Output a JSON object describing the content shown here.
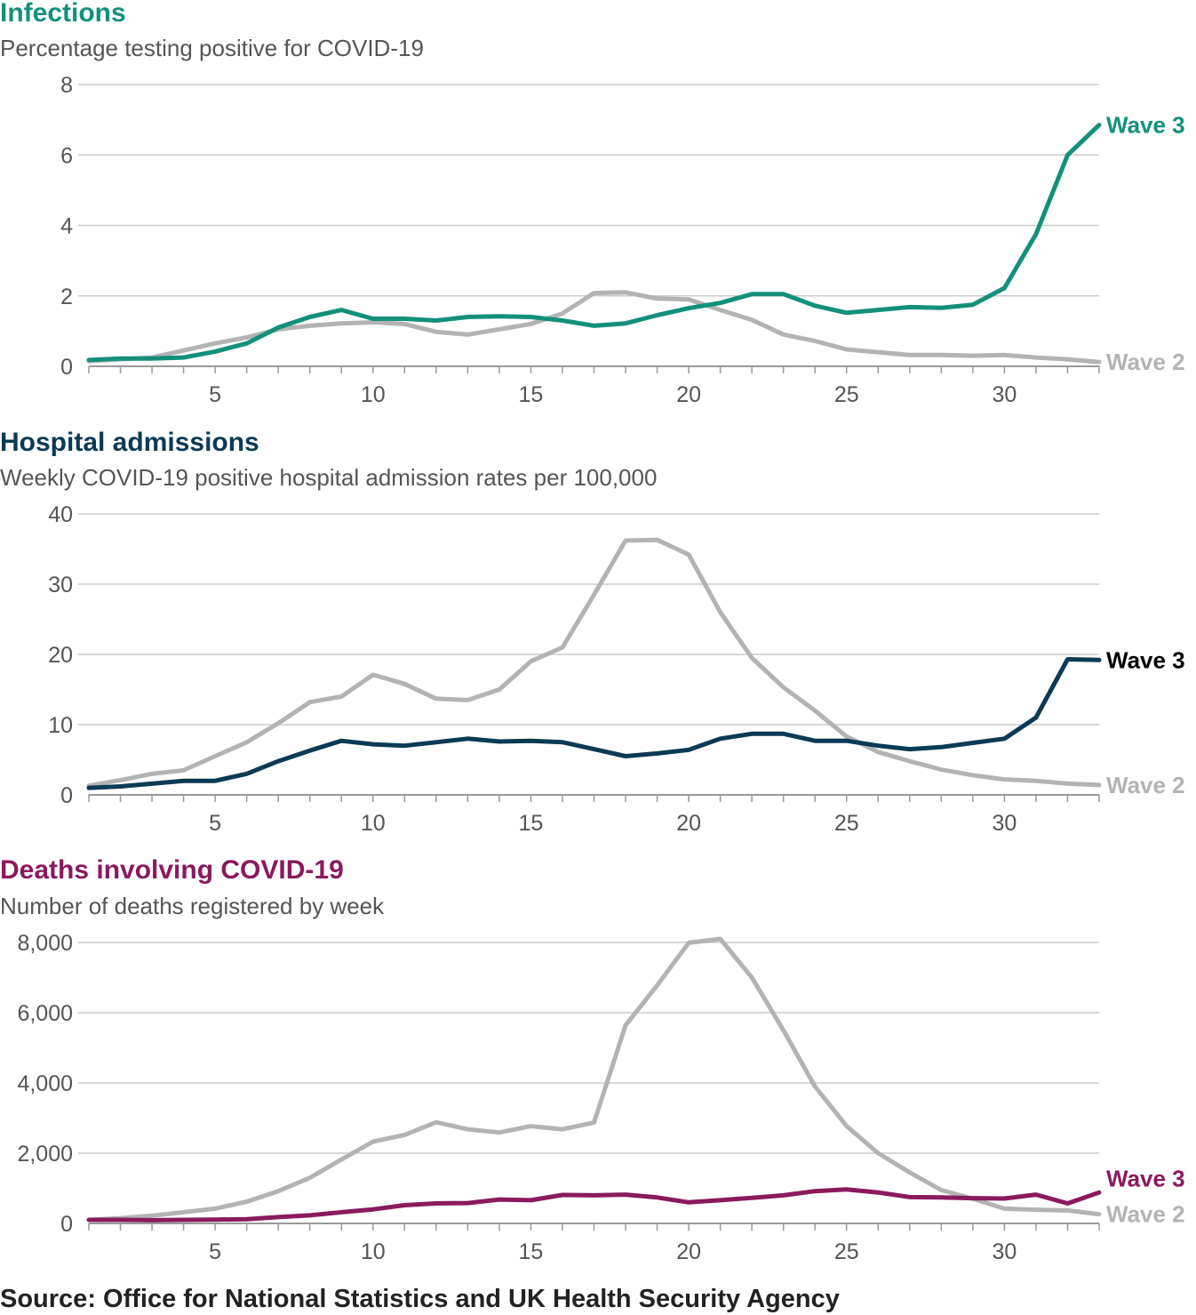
{
  "chart_data": [
    {
      "type": "line",
      "title": "Infections",
      "subtitle": "Percentage testing positive for COVID-19",
      "title_color": "#13907a",
      "x": [
        1,
        2,
        3,
        4,
        5,
        6,
        7,
        8,
        9,
        10,
        11,
        12,
        13,
        14,
        15,
        16,
        17,
        18,
        19,
        20,
        21,
        22,
        23,
        24,
        25,
        26,
        27,
        28,
        29,
        30,
        31,
        32,
        33
      ],
      "xticks": [
        5,
        10,
        15,
        20,
        25,
        30
      ],
      "xlim": [
        1,
        33
      ],
      "ylim": [
        0,
        8
      ],
      "yticks": [
        0,
        2,
        4,
        6,
        8
      ],
      "ytick_labels": [
        "0",
        "2",
        "4",
        "6",
        "8"
      ],
      "series": [
        {
          "name": "Wave 2",
          "color": "#b3b3b3",
          "values": [
            0.15,
            0.2,
            0.25,
            0.45,
            0.65,
            0.82,
            1.05,
            1.15,
            1.22,
            1.25,
            1.2,
            0.98,
            0.9,
            1.05,
            1.2,
            1.5,
            2.08,
            2.1,
            1.92,
            1.9,
            1.6,
            1.32,
            0.9,
            0.72,
            0.48,
            0.4,
            0.32,
            0.32,
            0.3,
            0.32,
            0.25,
            0.2,
            0.12
          ]
        },
        {
          "name": "Wave 3",
          "color": "#13907a",
          "values": [
            0.18,
            0.22,
            0.22,
            0.25,
            0.42,
            0.65,
            1.1,
            1.4,
            1.6,
            1.35,
            1.35,
            1.3,
            1.4,
            1.42,
            1.4,
            1.3,
            1.15,
            1.22,
            1.45,
            1.65,
            1.8,
            2.05,
            2.05,
            1.72,
            1.52,
            1.6,
            1.68,
            1.66,
            1.75,
            2.22,
            3.75,
            6.0,
            6.85
          ]
        }
      ]
    },
    {
      "type": "line",
      "title": "Hospital admissions",
      "subtitle": "Weekly COVID-19 positive hospital admission rates per 100,000",
      "title_color": "#0b3a55",
      "x": [
        1,
        2,
        3,
        4,
        5,
        6,
        7,
        8,
        9,
        10,
        11,
        12,
        13,
        14,
        15,
        16,
        17,
        18,
        19,
        20,
        21,
        22,
        23,
        24,
        25,
        26,
        27,
        28,
        29,
        30,
        31,
        32,
        33
      ],
      "xticks": [
        5,
        10,
        15,
        20,
        25,
        30
      ],
      "xlim": [
        1,
        33
      ],
      "ylim": [
        0,
        40
      ],
      "yticks": [
        0,
        10,
        20,
        30,
        40
      ],
      "ytick_labels": [
        "0",
        "10",
        "20",
        "30",
        "40"
      ],
      "series": [
        {
          "name": "Wave 2",
          "color": "#b3b3b3",
          "values": [
            1.3,
            2.1,
            3.0,
            3.5,
            5.5,
            7.5,
            10.2,
            13.2,
            14.0,
            17.1,
            15.8,
            13.7,
            13.5,
            15.0,
            19.0,
            21.0,
            28.5,
            36.2,
            36.3,
            34.2,
            26.0,
            19.5,
            15.3,
            12.0,
            8.3,
            6.1,
            4.8,
            3.6,
            2.8,
            2.2,
            2.0,
            1.6,
            1.4
          ]
        },
        {
          "name": "Wave 3",
          "color": "#0b3a55",
          "values": [
            1.0,
            1.2,
            1.6,
            2.0,
            2.0,
            3.0,
            4.8,
            6.3,
            7.7,
            7.2,
            7.0,
            7.5,
            8.0,
            7.6,
            7.7,
            7.5,
            6.5,
            5.5,
            5.9,
            6.4,
            8.0,
            8.7,
            8.7,
            7.7,
            7.7,
            7.0,
            6.5,
            6.8,
            7.4,
            8.0,
            11.0,
            19.3,
            19.2
          ]
        }
      ]
    },
    {
      "type": "line",
      "title": "Deaths involving COVID-19",
      "subtitle": "Number of deaths registered by week",
      "title_color": "#8a1a5c",
      "x": [
        1,
        2,
        3,
        4,
        5,
        6,
        7,
        8,
        9,
        10,
        11,
        12,
        13,
        14,
        15,
        16,
        17,
        18,
        19,
        20,
        21,
        22,
        23,
        24,
        25,
        26,
        27,
        28,
        29,
        30,
        31,
        32,
        33
      ],
      "xticks": [
        5,
        10,
        15,
        20,
        25,
        30
      ],
      "xlim": [
        1,
        33
      ],
      "ylim": [
        0,
        8000
      ],
      "yticks": [
        0,
        2000,
        4000,
        6000,
        8000
      ],
      "ytick_labels": [
        "0",
        "2,000",
        "4,000",
        "6,000",
        "8,000"
      ],
      "series": [
        {
          "name": "Wave 2",
          "color": "#b3b3b3",
          "values": [
            100,
            150,
            220,
            320,
            420,
            620,
            920,
            1300,
            1820,
            2330,
            2520,
            2880,
            2680,
            2590,
            2770,
            2680,
            2870,
            5640,
            6780,
            7990,
            8100,
            7000,
            5500,
            3900,
            2770,
            2000,
            1450,
            950,
            700,
            420,
            390,
            370,
            260
          ]
        },
        {
          "name": "Wave 3",
          "color": "#8a1a5c",
          "values": [
            100,
            100,
            90,
            100,
            110,
            120,
            180,
            230,
            320,
            400,
            520,
            570,
            580,
            680,
            660,
            810,
            800,
            820,
            740,
            600,
            660,
            730,
            800,
            920,
            970,
            880,
            750,
            740,
            720,
            710,
            820,
            570,
            880
          ]
        }
      ]
    }
  ],
  "labels": {
    "wave3": "Wave 3",
    "wave2": "Wave 2",
    "wave3_hosp_color": "#000000",
    "wave2_color": "#b3b3b3"
  },
  "source": "Source: Office for National Statistics and UK Health Security Agency"
}
